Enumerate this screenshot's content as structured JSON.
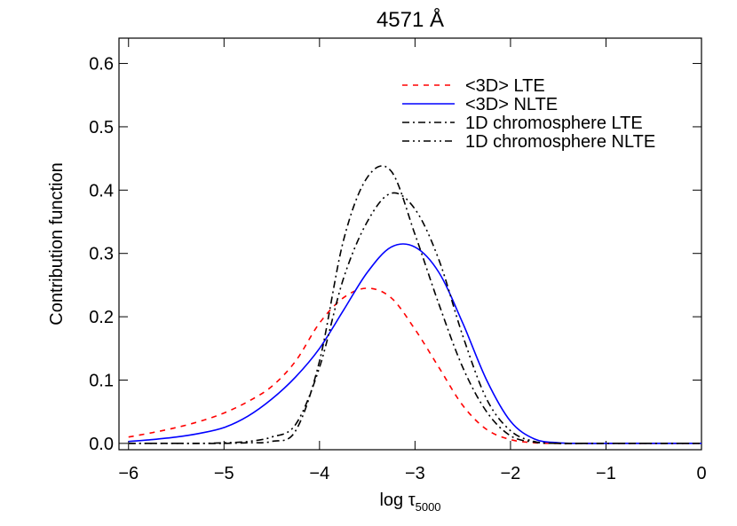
{
  "chart_data": {
    "type": "line",
    "title": "4571 Å",
    "x_label": "log τ",
    "x_label_sub": "5000",
    "y_label": "Contribution function",
    "x": [
      -6,
      -5.75,
      -5.5,
      -5.25,
      -5,
      -4.75,
      -4.5,
      -4.25,
      -4,
      -3.75,
      -3.5,
      -3.25,
      -3,
      -2.75,
      -2.5,
      -2.25,
      -2,
      -1.75,
      -1.5,
      -1.25,
      -1,
      -0.75,
      -0.5,
      -0.25,
      0
    ],
    "series": [
      {
        "name": "<3D> LTE",
        "color": "#ff0000",
        "dash": "6,6",
        "values": [
          0.01,
          0.017,
          0.025,
          0.035,
          0.048,
          0.066,
          0.09,
          0.13,
          0.19,
          0.23,
          0.245,
          0.23,
          0.18,
          0.12,
          0.06,
          0.022,
          0.006,
          0.001,
          0,
          0,
          0,
          0,
          0,
          0,
          0
        ]
      },
      {
        "name": "<3D> NLTE",
        "color": "#0000ff",
        "dash": "none",
        "values": [
          0.003,
          0.006,
          0.01,
          0.016,
          0.025,
          0.043,
          0.07,
          0.105,
          0.15,
          0.21,
          0.27,
          0.31,
          0.31,
          0.27,
          0.19,
          0.1,
          0.035,
          0.007,
          0.001,
          0,
          0,
          0,
          0,
          0,
          0
        ]
      },
      {
        "name": "1D chromosphere LTE",
        "color": "#000000",
        "dash": "8,4,2,4",
        "values": [
          0,
          0,
          0,
          0,
          0,
          0.001,
          0.003,
          0.02,
          0.13,
          0.32,
          0.42,
          0.43,
          0.33,
          0.22,
          0.12,
          0.05,
          0.012,
          0.002,
          0,
          0,
          0,
          0,
          0,
          0,
          0
        ]
      },
      {
        "name": "1D chromosphere NLTE",
        "color": "#000000",
        "dash": "8,4,2,4,2,4",
        "values": [
          0,
          0,
          0,
          0,
          0.001,
          0.003,
          0.01,
          0.03,
          0.12,
          0.26,
          0.35,
          0.395,
          0.37,
          0.29,
          0.17,
          0.07,
          0.02,
          0.003,
          0,
          0,
          0,
          0,
          0,
          0,
          0
        ]
      }
    ],
    "xlim": [
      -6.1,
      0
    ],
    "xticks": [
      {
        "value": -6,
        "label": "−6"
      },
      {
        "value": -5,
        "label": "−5"
      },
      {
        "value": -4,
        "label": "−4"
      },
      {
        "value": -3,
        "label": "−3"
      },
      {
        "value": -2,
        "label": "−2"
      },
      {
        "value": -1,
        "label": "−1"
      },
      0
    ],
    "ylim": [
      -0.01,
      0.64
    ],
    "yticks": [
      {
        "value": 0,
        "label": "0.0"
      },
      0.1,
      0.2,
      0.3,
      0.4,
      0.5,
      0.6
    ],
    "grid": false,
    "legend": "upper right"
  }
}
